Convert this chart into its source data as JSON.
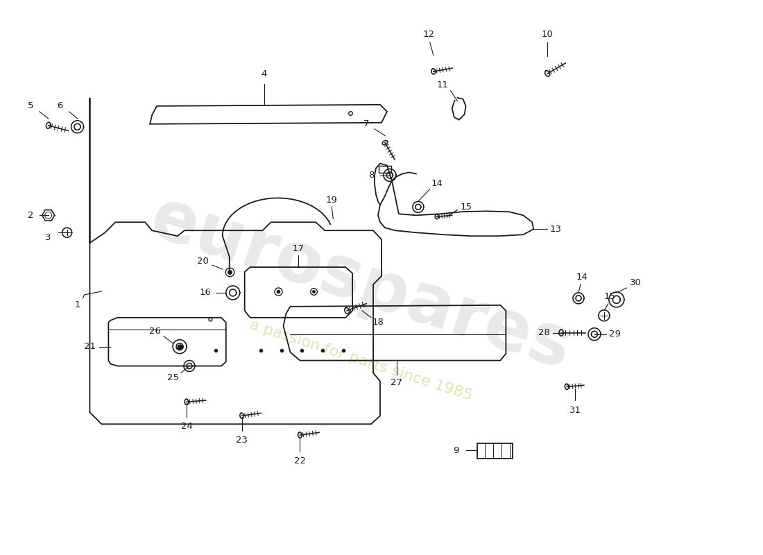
{
  "bg_color": "#ffffff",
  "line_color": "#1a1a1a",
  "watermark1": "eurospares",
  "watermark2": "a passion for parts since 1985",
  "figsize": [
    11.0,
    8.0
  ],
  "dpi": 100
}
